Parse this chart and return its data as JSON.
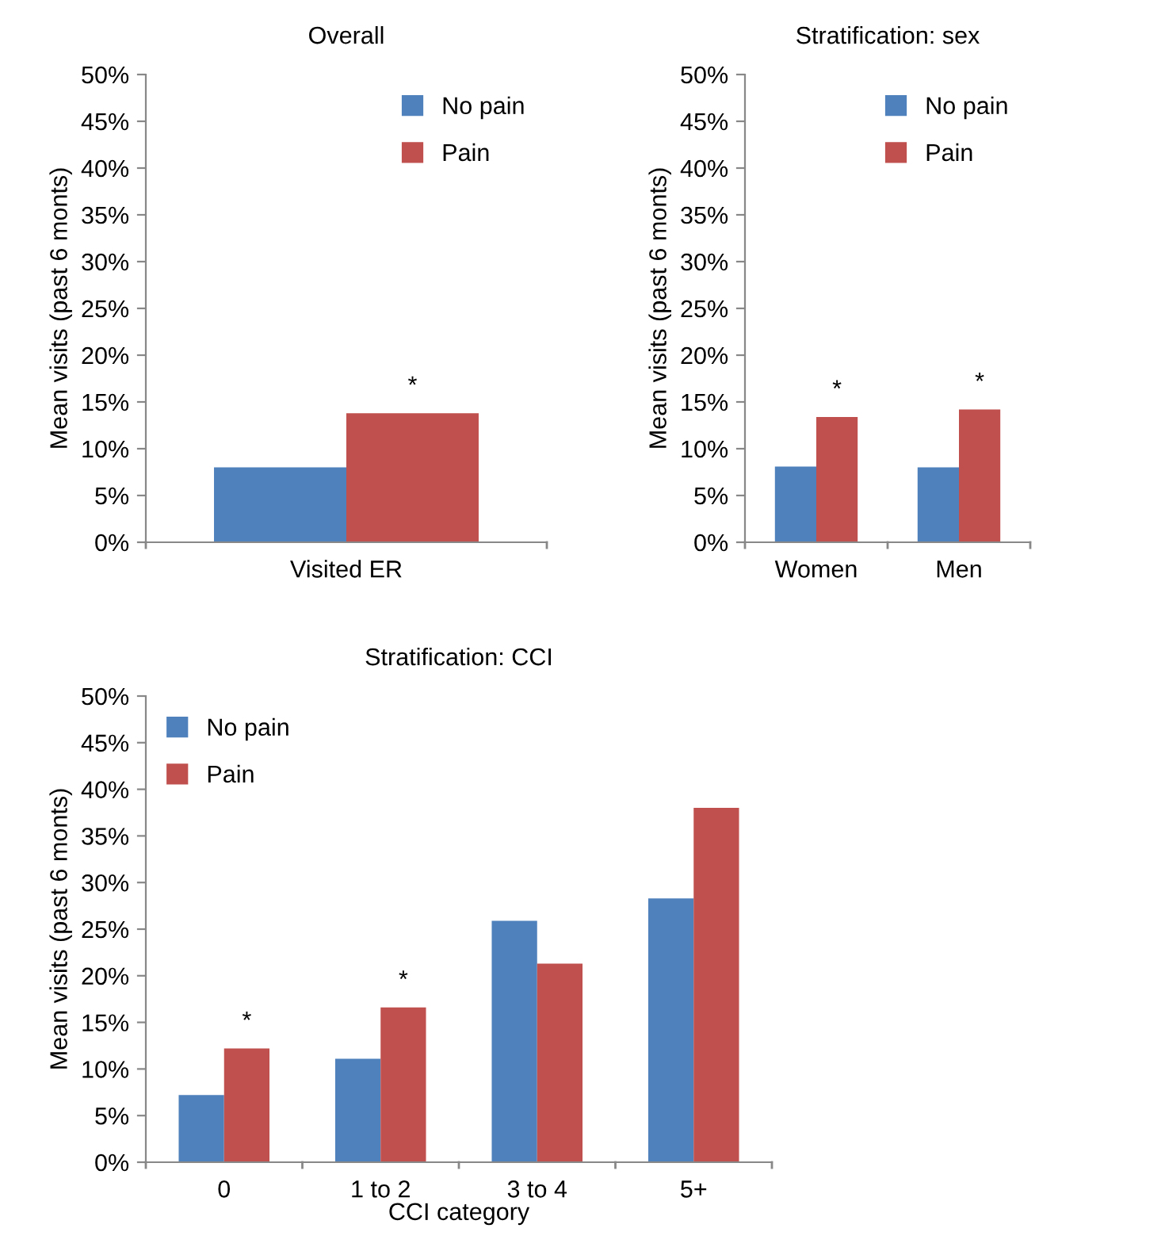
{
  "chart_data": [
    {
      "type": "bar",
      "title": "Overall",
      "ylabel": "Mean visits (past 6 monts)",
      "categories": [
        "Visited ER"
      ],
      "series": [
        {
          "name": "No pain",
          "color": "#4f81bd",
          "values": [
            8.0
          ]
        },
        {
          "name": "Pain",
          "color": "#c0504d",
          "values": [
            13.8
          ]
        }
      ],
      "ylim": [
        0,
        50
      ],
      "yticks": [
        {
          "value": 0,
          "label": "0%"
        },
        {
          "value": 5,
          "label": "5%"
        },
        {
          "value": 10,
          "label": "10%"
        },
        {
          "value": 15,
          "label": "15%"
        },
        {
          "value": 20,
          "label": "20%"
        },
        {
          "value": 25,
          "label": "25%"
        },
        {
          "value": 30,
          "label": "30%"
        },
        {
          "value": 35,
          "label": "35%"
        },
        {
          "value": 40,
          "label": "40%"
        },
        {
          "value": 45,
          "label": "45%"
        },
        {
          "value": 50,
          "label": "50%"
        }
      ],
      "annotations": [
        {
          "text": "*",
          "x": "Visited ER",
          "y": 13.8
        }
      ],
      "legend": "top right",
      "grid": false
    },
    {
      "type": "bar",
      "title": "Stratification: sex",
      "ylabel": "Mean visits (past 6 monts)",
      "categories": [
        "Women",
        "Men"
      ],
      "series": [
        {
          "name": "No pain",
          "color": "#4f81bd",
          "values": [
            8.1,
            8.0
          ]
        },
        {
          "name": "Pain",
          "color": "#c0504d",
          "values": [
            13.4,
            14.2
          ]
        }
      ],
      "ylim": [
        0,
        50
      ],
      "yticks": [
        {
          "value": 0,
          "label": "0%"
        },
        {
          "value": 5,
          "label": "5%"
        },
        {
          "value": 10,
          "label": "10%"
        },
        {
          "value": 15,
          "label": "15%"
        },
        {
          "value": 20,
          "label": "20%"
        },
        {
          "value": 25,
          "label": "25%"
        },
        {
          "value": 30,
          "label": "30%"
        },
        {
          "value": 35,
          "label": "35%"
        },
        {
          "value": 40,
          "label": "40%"
        },
        {
          "value": 45,
          "label": "45%"
        },
        {
          "value": 50,
          "label": "50%"
        }
      ],
      "annotations": [
        {
          "text": "*",
          "x": "Women",
          "y": 13.4
        },
        {
          "text": "*",
          "x": "Men",
          "y": 14.2
        }
      ],
      "legend": "top right",
      "grid": false
    },
    {
      "type": "bar",
      "title": "Stratification: CCI",
      "ylabel": "Mean visits (past 6 monts)",
      "xlabel": "CCI category",
      "categories": [
        "0",
        "1 to 2",
        "3 to 4",
        "5+"
      ],
      "series": [
        {
          "name": "No pain",
          "color": "#4f81bd",
          "values": [
            7.2,
            11.1,
            25.9,
            28.3
          ]
        },
        {
          "name": "Pain",
          "color": "#c0504d",
          "values": [
            12.2,
            16.6,
            21.3,
            38.0
          ]
        }
      ],
      "ylim": [
        0,
        50
      ],
      "yticks": [
        {
          "value": 0,
          "label": "0%"
        },
        {
          "value": 5,
          "label": "5%"
        },
        {
          "value": 10,
          "label": "10%"
        },
        {
          "value": 15,
          "label": "15%"
        },
        {
          "value": 20,
          "label": "20%"
        },
        {
          "value": 25,
          "label": "25%"
        },
        {
          "value": 30,
          "label": "30%"
        },
        {
          "value": 35,
          "label": "35%"
        },
        {
          "value": 40,
          "label": "40%"
        },
        {
          "value": 45,
          "label": "45%"
        },
        {
          "value": 50,
          "label": "50%"
        }
      ],
      "annotations": [
        {
          "text": "*",
          "x": "0",
          "y": 12.2
        },
        {
          "text": "*",
          "x": "1 to 2",
          "y": 16.6
        }
      ],
      "legend": "top left",
      "grid": false
    }
  ]
}
